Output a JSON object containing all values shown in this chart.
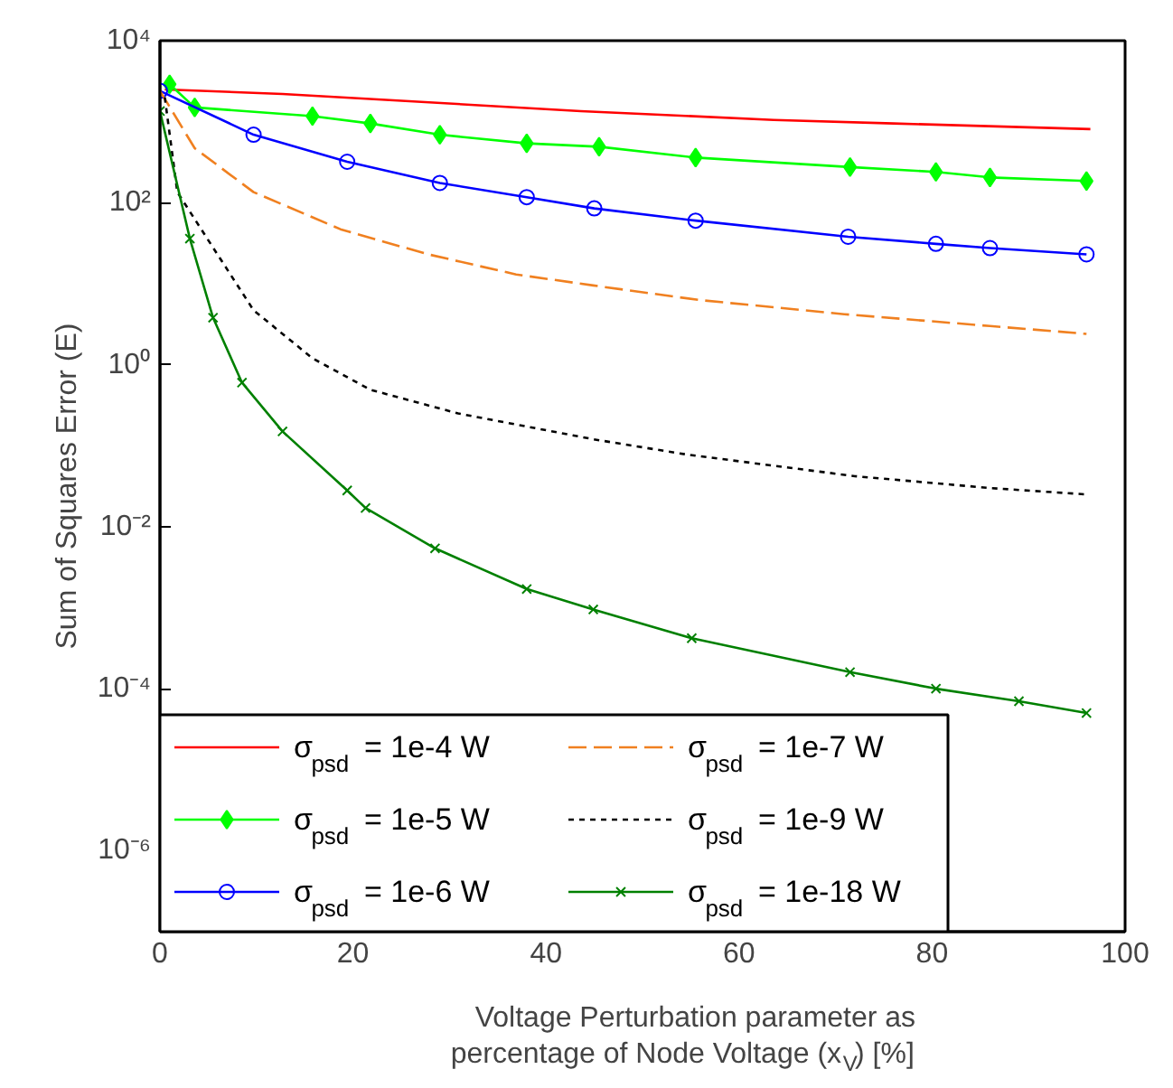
{
  "chart_data": {
    "type": "line",
    "xlabel": "Voltage Perturbation parameter as\npercentage of Node Voltage (x$_{V}$) [%]",
    "ylabel": "Sum of Squares Error (E)",
    "log": "y",
    "grid": false,
    "legend": "bottom left",
    "xlim": [
      0,
      100
    ],
    "xticks": [
      0,
      20,
      40,
      60,
      80,
      100
    ],
    "ylim": [
      1e-07,
      10000
    ],
    "yticks": [
      {
        "value": 1e-06,
        "label": "10⁻⁶"
      },
      {
        "value": 0.0001,
        "label": "10⁻⁴"
      },
      {
        "value": 0.01,
        "label": "10⁻²"
      },
      {
        "value": 1,
        "label": "10⁰"
      },
      {
        "value": 100,
        "label": "10²"
      },
      {
        "value": 10000,
        "label": "10⁴"
      }
    ],
    "series": [
      {
        "name": "σ$_{psd}$ = 1e-4 W",
        "color": "#ff0000",
        "marker": "none",
        "line_style": "solid",
        "x": [
          0.5,
          12.7,
          43.6,
          63.6,
          76,
          96.4
        ],
        "values": [
          2500,
          2200,
          1350,
          1050,
          950,
          810
        ]
      },
      {
        "name": "σ$_{psd}$ = 1e-5 W",
        "color": "#00ff00",
        "marker": "diamond",
        "line_style": "solid",
        "x": [
          1,
          3.6,
          15.8,
          21.8,
          29,
          38,
          45.5,
          55.5,
          71.5,
          80.4,
          86,
          96
        ],
        "values": [
          2900,
          1500,
          1170,
          950,
          690,
          540,
          490,
          360,
          275,
          240,
          205,
          185
        ]
      },
      {
        "name": "σ$_{psd}$ = 1e-6 W",
        "color": "#0000ff",
        "marker": "circle",
        "line_style": "solid",
        "x": [
          0,
          9.7,
          19.4,
          29,
          38,
          45,
          55.5,
          71.3,
          80.4,
          86,
          96
        ],
        "values": [
          2400,
          690,
          320,
          175,
          117,
          85,
          60,
          38,
          31,
          27.5,
          23
        ]
      },
      {
        "name": "σ$_{psd}$ = 1e-7 W",
        "color": "#f08020",
        "marker": "none",
        "line_style": "dashed",
        "x": [
          0,
          3.6,
          9.7,
          18.7,
          27.8,
          36.9,
          44.9,
          55.8,
          70.9,
          86,
          96
        ],
        "values": [
          2400,
          470,
          135,
          47,
          23,
          13,
          9.5,
          6.3,
          4.2,
          3,
          2.4
        ]
      },
      {
        "name": "σ$_{psd}$ = 1e-9 W",
        "color": "#000000",
        "marker": "none",
        "line_style": "dotted",
        "x": [
          0.5,
          1.8,
          4.9,
          9.7,
          15.8,
          21.8,
          30.9,
          44.9,
          54.5,
          72,
          86,
          96
        ],
        "values": [
          2000,
          135,
          36,
          4.7,
          1.2,
          0.49,
          0.25,
          0.12,
          0.078,
          0.042,
          0.03,
          0.025
        ]
      },
      {
        "name": "σ$_{psd}$ = 1e-18 W",
        "color": "#008000",
        "marker": "cross",
        "line_style": "solid",
        "x": [
          0,
          3.1,
          5.5,
          8.5,
          12.7,
          19.4,
          21.3,
          28.5,
          38,
          44.9,
          55.1,
          71.5,
          80.4,
          89,
          96
        ],
        "values": [
          1350,
          36,
          3.8,
          0.6,
          0.15,
          0.028,
          0.017,
          0.0054,
          0.0017,
          0.00095,
          0.00042,
          0.00016,
          0.0001,
          7e-05,
          5e-05
        ]
      }
    ]
  }
}
